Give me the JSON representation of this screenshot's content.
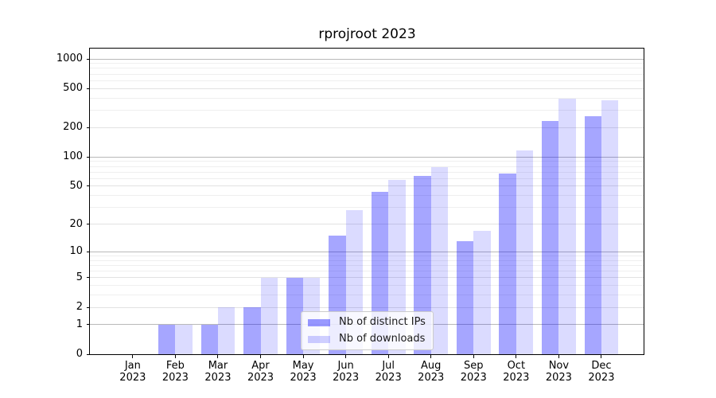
{
  "chart_data": {
    "type": "bar",
    "title": "rprojroot 2023",
    "categories": [
      "Jan",
      "Feb",
      "Mar",
      "Apr",
      "May",
      "Jun",
      "Jul",
      "Aug",
      "Sep",
      "Oct",
      "Nov",
      "Dec"
    ],
    "year": "2023",
    "series": [
      {
        "name": "Nb of distinct IPs",
        "color": "#0000ff",
        "alpha": 0.35,
        "values": [
          0,
          1,
          1,
          2,
          5,
          15,
          44,
          64,
          13,
          67,
          235,
          260
        ]
      },
      {
        "name": "Nb of downloads",
        "color": "#0000ff",
        "alpha": 0.14,
        "values": [
          0,
          1,
          2,
          5,
          5,
          28,
          58,
          78,
          17,
          117,
          395,
          380
        ]
      }
    ],
    "xlabel": "",
    "ylabel": "",
    "y_scale": "log1p",
    "ylim": [
      0,
      1290
    ],
    "y_ticks": [
      0,
      1,
      2,
      5,
      10,
      20,
      50,
      100,
      200,
      500,
      1000
    ],
    "y_minor_ticks": [
      3,
      4,
      6,
      7,
      8,
      9,
      30,
      40,
      60,
      70,
      80,
      90,
      300,
      400,
      600,
      700,
      800,
      900
    ],
    "grid": "horizontal",
    "legend_position": "lower-center",
    "grid_colors": {
      "decade": "#b9b9b9",
      "major": "#e2e2e2",
      "minor": "#efefef"
    }
  }
}
